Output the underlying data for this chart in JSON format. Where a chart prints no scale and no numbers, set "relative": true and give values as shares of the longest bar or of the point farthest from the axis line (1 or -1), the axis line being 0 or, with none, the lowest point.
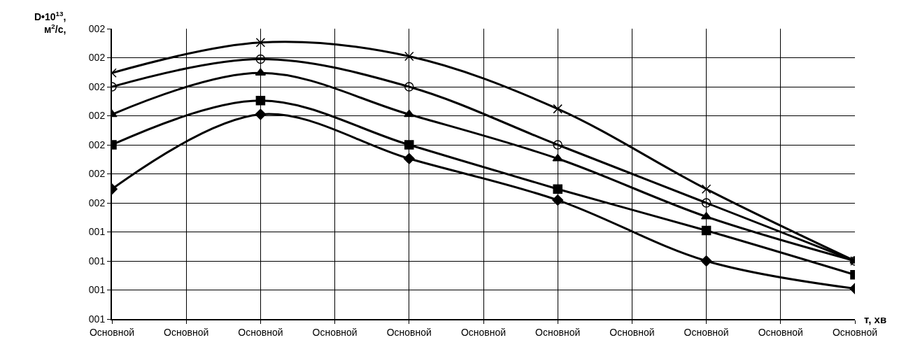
{
  "chart_data": {
    "type": "line",
    "ylabel": "D•10$^{13}$, м$^{2}$/с,",
    "xlabel": "т, хв",
    "relative": true,
    "categories": [
      "Основной",
      "Основной",
      "Основной",
      "Основной",
      "Основной",
      "Основной",
      "Основной",
      "Основной",
      "Основной",
      "Основной",
      "Основной"
    ],
    "annotations": [
      "002",
      "002",
      "002",
      "002",
      "002",
      "002",
      "002",
      "001",
      "001",
      "001",
      "001"
    ],
    "grid": true,
    "series": [
      {
        "color": "#000000",
        "marker": "diamond",
        "values": [
          0.47,
          null,
          0.74,
          null,
          0.58,
          null,
          0.43,
          null,
          0.21,
          null,
          0.11
        ]
      },
      {
        "color": "#000000",
        "marker": "square",
        "values": [
          0.63,
          null,
          0.79,
          null,
          0.63,
          null,
          0.47,
          null,
          0.32,
          null,
          0.16
        ]
      },
      {
        "color": "#000000",
        "marker": "triangle",
        "values": [
          0.74,
          null,
          0.89,
          null,
          0.74,
          null,
          0.58,
          null,
          0.37,
          null,
          0.21
        ]
      },
      {
        "color": "#000000",
        "marker": "circle",
        "values": [
          0.84,
          null,
          0.94,
          null,
          0.84,
          null,
          0.63,
          null,
          0.42,
          null,
          0.21
        ]
      },
      {
        "color": "#000000",
        "marker": "cross",
        "values": [
          0.89,
          null,
          1,
          null,
          0.95,
          null,
          0.76,
          null,
          0.47,
          null,
          0.21
        ]
      }
    ]
  }
}
